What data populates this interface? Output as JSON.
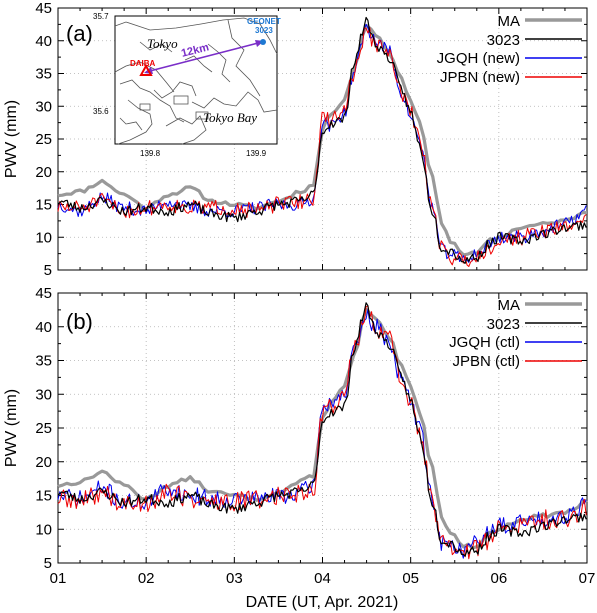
{
  "chart_data": [
    {
      "type": "line",
      "panel_label": "(a)",
      "ylabel": "PWV (mm)",
      "xlabel": "DATE (UT, Apr. 2021)",
      "ylim": [
        5,
        45
      ],
      "xlim": [
        1,
        7
      ],
      "yticks": [
        "5",
        "10",
        "15",
        "20",
        "25",
        "30",
        "35",
        "40",
        "45"
      ],
      "xticks": [
        "01",
        "02",
        "03",
        "04",
        "05",
        "06",
        "07"
      ],
      "grid": true,
      "legend_position": "top-right",
      "x_anchors": [
        1.0,
        1.25,
        1.5,
        1.75,
        2.0,
        2.25,
        2.5,
        2.75,
        3.0,
        3.25,
        3.5,
        3.75,
        3.9,
        4.0,
        4.1,
        4.25,
        4.35,
        4.5,
        4.6,
        4.75,
        4.9,
        5.0,
        5.1,
        5.25,
        5.35,
        5.45,
        5.6,
        5.75,
        5.9,
        6.0,
        6.25,
        6.5,
        6.75,
        7.0
      ],
      "series": [
        {
          "name": "MA",
          "color": "#999999",
          "width": 3.2,
          "noise": 0.3,
          "seed": 11,
          "values": [
            16.5,
            17.0,
            18.5,
            16.5,
            14.5,
            16.5,
            17.5,
            15.5,
            15.0,
            14.5,
            15.5,
            17.0,
            18.0,
            26.5,
            29.0,
            31.0,
            35.5,
            42.5,
            41.0,
            38.5,
            34.0,
            31.0,
            27.5,
            19.0,
            12.0,
            9.5,
            7.5,
            7.5,
            9.5,
            10.0,
            11.5,
            12.0,
            12.5,
            14.0
          ]
        },
        {
          "name": "3023",
          "color": "#000000",
          "width": 1.2,
          "noise": 0.8,
          "seed": 23,
          "values": [
            15.5,
            14.5,
            15.5,
            14.0,
            14.5,
            14.0,
            15.0,
            13.5,
            13.0,
            14.0,
            15.0,
            15.5,
            16.5,
            26.0,
            27.5,
            28.0,
            36.5,
            43.0,
            39.5,
            37.5,
            32.5,
            29.0,
            24.0,
            14.0,
            8.5,
            8.0,
            6.5,
            7.0,
            9.0,
            10.0,
            9.5,
            10.5,
            11.5,
            12.0
          ]
        },
        {
          "name": "JGQH (new)",
          "color": "#0000ee",
          "width": 1.0,
          "noise": 1.0,
          "seed": 37,
          "values": [
            15.0,
            14.0,
            16.0,
            14.5,
            14.0,
            15.5,
            14.5,
            14.0,
            14.0,
            14.5,
            15.0,
            15.0,
            16.0,
            27.5,
            27.0,
            29.0,
            35.0,
            42.0,
            40.0,
            38.5,
            32.0,
            28.5,
            24.5,
            14.5,
            8.0,
            7.5,
            6.5,
            7.5,
            9.0,
            10.0,
            10.0,
            11.0,
            12.0,
            14.0
          ]
        },
        {
          "name": "JPBN (new)",
          "color": "#ee0000",
          "width": 1.0,
          "noise": 1.2,
          "seed": 51,
          "values": [
            14.5,
            14.5,
            15.5,
            14.0,
            14.5,
            15.0,
            14.5,
            14.5,
            14.5,
            14.0,
            15.0,
            15.5,
            16.0,
            28.0,
            28.0,
            29.5,
            35.0,
            41.5,
            39.5,
            38.0,
            32.0,
            29.0,
            25.0,
            14.5,
            8.5,
            7.0,
            6.5,
            7.0,
            8.5,
            9.5,
            10.0,
            11.0,
            11.5,
            13.0
          ]
        }
      ],
      "inset_map": {
        "lat_ticks": [
          "35.7",
          "35.6"
        ],
        "lon_ticks": [
          "139.8",
          "139.9"
        ],
        "labels": [
          "Tokyo",
          "Tokyo Bay"
        ],
        "site_a": "DAIBA",
        "site_b": "GEONET\n3023",
        "distance": "12km",
        "colors": {
          "site_a": "#ee0000",
          "site_b": "#1e78d2",
          "arrow": "#7a2ec8"
        }
      }
    },
    {
      "type": "line",
      "panel_label": "(b)",
      "ylabel": "PWV (mm)",
      "xlabel": "DATE (UT, Apr. 2021)",
      "ylim": [
        5,
        45
      ],
      "xlim": [
        1,
        7
      ],
      "yticks": [
        "5",
        "10",
        "15",
        "20",
        "25",
        "30",
        "35",
        "40",
        "45"
      ],
      "xticks": [
        "01",
        "02",
        "03",
        "04",
        "05",
        "06",
        "07"
      ],
      "grid": true,
      "legend_position": "top-right",
      "x_anchors": [
        1.0,
        1.25,
        1.5,
        1.75,
        2.0,
        2.25,
        2.5,
        2.75,
        3.0,
        3.25,
        3.5,
        3.75,
        3.9,
        4.0,
        4.1,
        4.25,
        4.35,
        4.5,
        4.6,
        4.75,
        4.9,
        5.0,
        5.1,
        5.25,
        5.35,
        5.45,
        5.6,
        5.75,
        5.9,
        6.0,
        6.25,
        6.5,
        6.75,
        7.0
      ],
      "series": [
        {
          "name": "MA",
          "color": "#999999",
          "width": 3.2,
          "noise": 0.3,
          "seed": 13,
          "values": [
            16.5,
            17.0,
            18.5,
            16.5,
            14.5,
            16.5,
            17.5,
            15.5,
            15.0,
            14.5,
            15.5,
            17.0,
            18.0,
            26.5,
            29.0,
            31.0,
            35.5,
            42.5,
            41.0,
            38.5,
            34.0,
            31.0,
            27.5,
            19.0,
            12.0,
            9.5,
            7.5,
            7.5,
            9.5,
            10.0,
            11.5,
            12.0,
            12.5,
            14.0
          ]
        },
        {
          "name": "3023",
          "color": "#000000",
          "width": 1.2,
          "noise": 0.8,
          "seed": 23,
          "values": [
            15.5,
            14.5,
            15.5,
            14.0,
            14.5,
            14.0,
            15.0,
            13.5,
            13.0,
            14.0,
            15.0,
            15.5,
            16.5,
            26.0,
            27.5,
            28.0,
            36.5,
            43.0,
            39.5,
            37.5,
            32.5,
            29.0,
            24.0,
            14.0,
            8.5,
            8.0,
            6.5,
            7.0,
            9.0,
            10.0,
            9.5,
            10.5,
            11.5,
            12.0
          ]
        },
        {
          "name": "JGQH (ctl)",
          "color": "#0000ee",
          "width": 1.0,
          "noise": 1.3,
          "seed": 71,
          "values": [
            15.0,
            14.5,
            16.0,
            14.0,
            14.0,
            16.0,
            15.0,
            14.5,
            14.5,
            14.5,
            15.0,
            15.5,
            16.5,
            28.0,
            29.0,
            30.0,
            36.0,
            41.5,
            40.0,
            38.0,
            32.0,
            29.0,
            25.0,
            14.5,
            8.0,
            7.5,
            7.0,
            8.0,
            9.5,
            10.5,
            11.0,
            11.5,
            12.0,
            14.0
          ]
        },
        {
          "name": "JPBN (ctl)",
          "color": "#ee0000",
          "width": 1.0,
          "noise": 1.5,
          "seed": 89,
          "values": [
            14.5,
            14.0,
            15.5,
            13.5,
            14.0,
            15.5,
            14.5,
            14.0,
            14.0,
            14.5,
            15.0,
            15.5,
            16.0,
            27.0,
            28.5,
            30.0,
            36.5,
            42.0,
            40.0,
            38.5,
            32.5,
            28.5,
            24.5,
            14.0,
            8.0,
            7.0,
            6.5,
            7.5,
            8.5,
            10.0,
            10.5,
            11.5,
            11.5,
            13.0
          ]
        }
      ]
    }
  ]
}
